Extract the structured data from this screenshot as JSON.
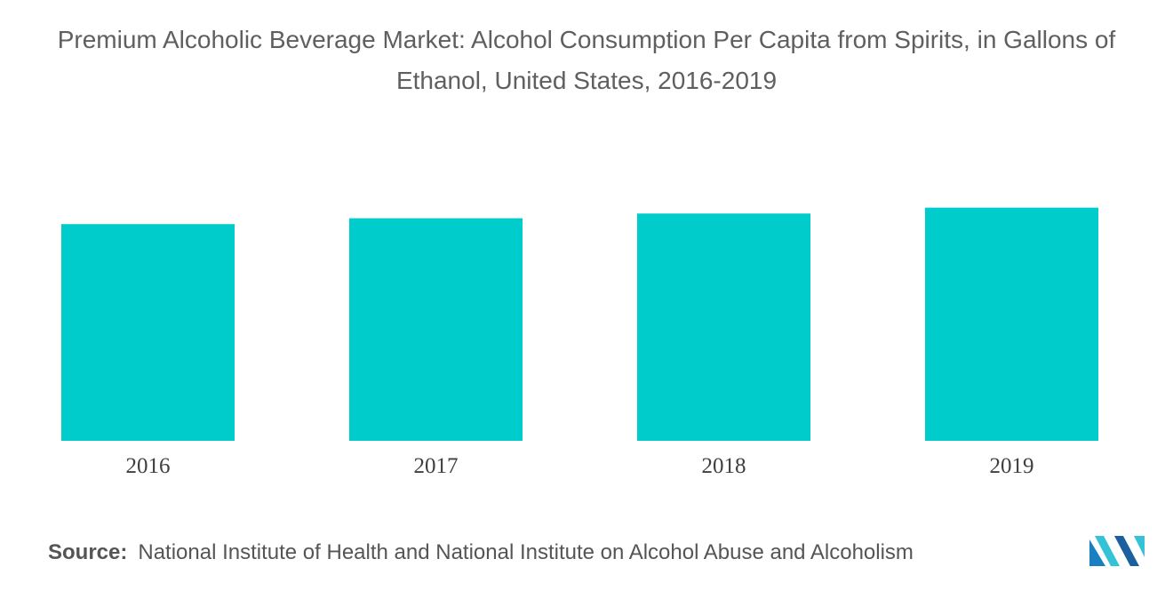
{
  "title": "Premium Alcoholic Beverage Market: Alcohol Consumption Per Capita from Spirits, in Gallons of Ethanol, United States, 2016-2019",
  "source": {
    "label": "Source:",
    "text": "National Institute of Health and National Institute on Alcohol Abuse and Alcoholism"
  },
  "logo": {
    "icon": "mordor-intelligence-logo-icon",
    "colors": [
      "#1a7fc1",
      "#33c2d6",
      "#1a5f9e"
    ]
  },
  "colors": {
    "bar": "#00cccc",
    "title": "#5f5f5f",
    "axis_text": "#3f3f3f"
  },
  "chart_data": {
    "type": "bar",
    "categories": [
      "2016",
      "2017",
      "2018",
      "2019"
    ],
    "values": [
      0.92,
      0.945,
      0.965,
      0.99
    ],
    "ylim": [
      0,
      1
    ],
    "title": "Premium Alcoholic Beverage Market: Alcohol Consumption Per Capita from Spirits, in Gallons of Ethanol, United States, 2016-2019",
    "xlabel": "",
    "ylabel": "",
    "grid": false,
    "legend": "none"
  }
}
